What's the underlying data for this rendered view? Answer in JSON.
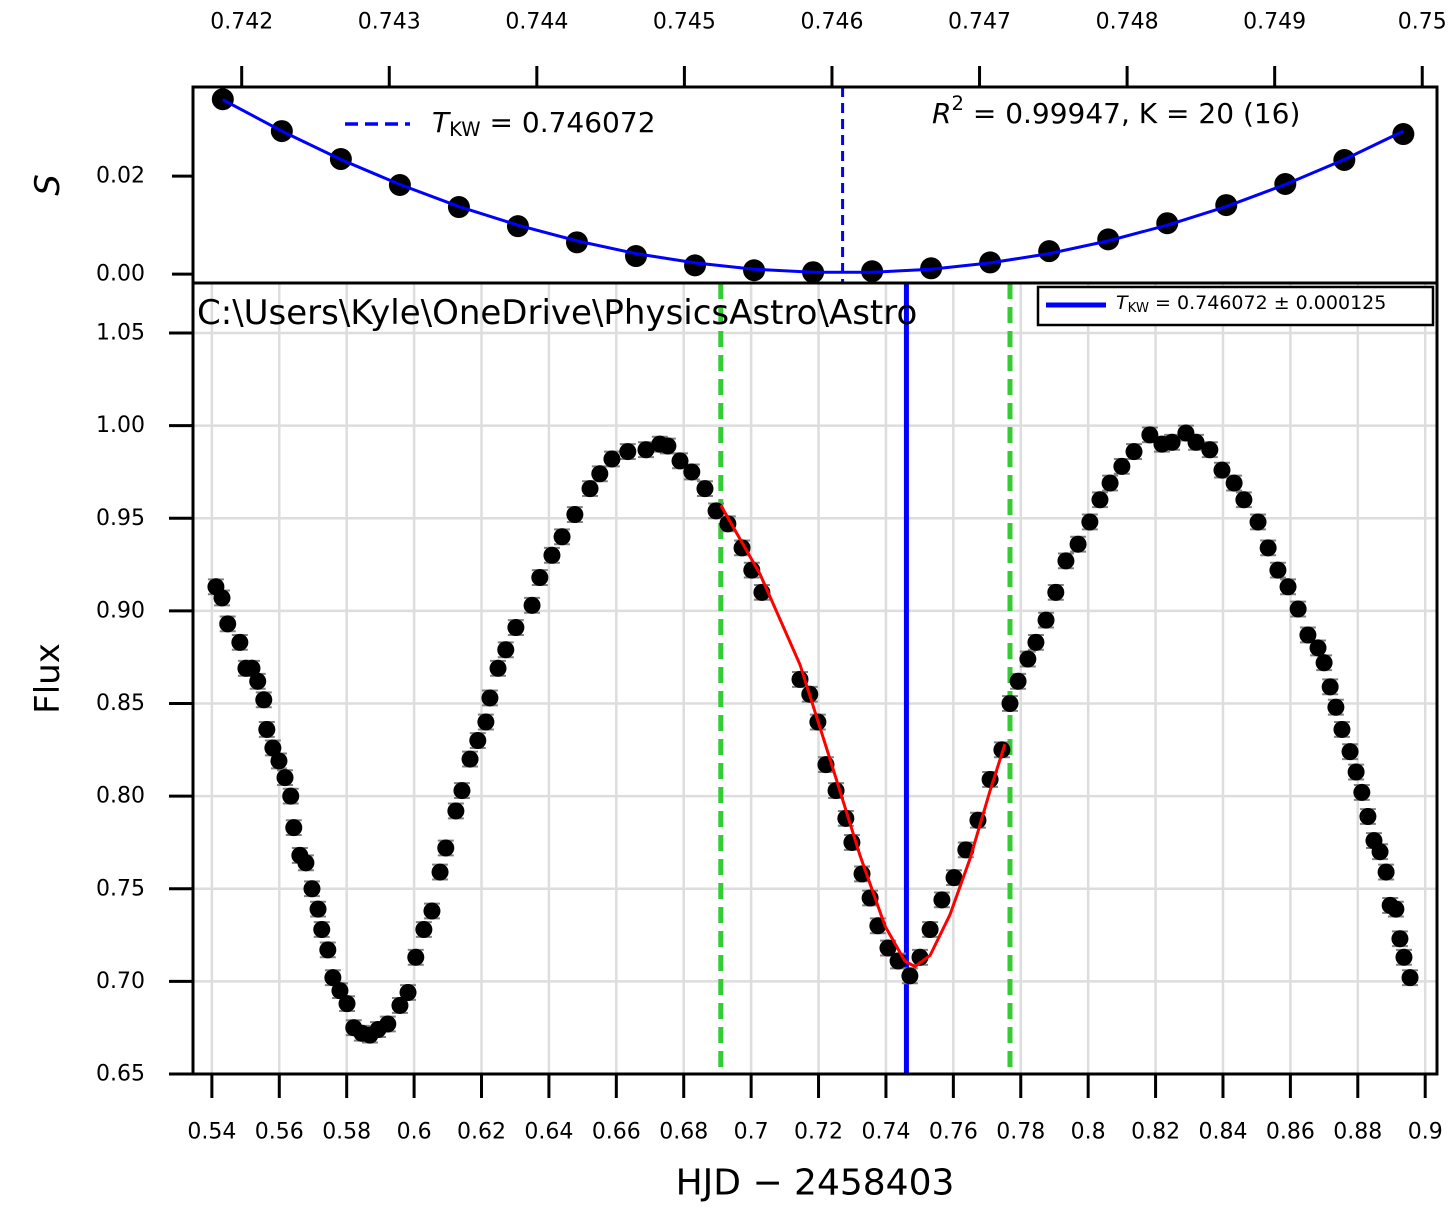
{
  "chart_data": [
    {
      "type": "scatter",
      "ylabel": "S",
      "xaxis": "top",
      "grid": false,
      "xlim": [
        0.74167,
        0.7501
      ],
      "ylim": [
        -0.0018,
        0.0382
      ],
      "xticks": [
        0.742,
        0.743,
        0.744,
        0.745,
        0.746,
        0.747,
        0.748,
        0.749,
        0.75
      ],
      "yticks": [
        {
          "value": 0,
          "label": "0.00"
        },
        {
          "value": 0.02,
          "label": "0.02"
        }
      ],
      "series": [
        {
          "color": "#000000",
          "x": [
            0.741872,
            0.742272,
            0.742672,
            0.743072,
            0.743472,
            0.743872,
            0.744272,
            0.744672,
            0.745072,
            0.745472,
            0.745872,
            0.746272,
            0.746672,
            0.747072,
            0.747472,
            0.747872,
            0.748272,
            0.748672,
            0.749072,
            0.749472,
            0.749872
          ],
          "values": [
            0.0357,
            0.0292,
            0.0235,
            0.0182,
            0.0137,
            0.0098,
            0.0065,
            0.0037,
            0.0018,
            0.0008,
            0.0004,
            0.0006,
            0.0012,
            0.0024,
            0.0047,
            0.0071,
            0.0104,
            0.0141,
            0.0184,
            0.0233,
            0.0286
          ]
        },
        {
          "line": true,
          "color": "#0000ff",
          "x": [
            0.741872,
            0.742272,
            0.742672,
            0.743072,
            0.743472,
            0.743872,
            0.744272,
            0.744672,
            0.745072,
            0.745472,
            0.745872,
            0.746272,
            0.746672,
            0.747072,
            0.747472,
            0.747872,
            0.748272,
            0.748672,
            0.749072,
            0.749472,
            0.749872
          ],
          "values": [
            0.0356,
            0.0292,
            0.0234,
            0.0183,
            0.0138,
            0.01,
            0.0068,
            0.0042,
            0.0023,
            0.001,
            0.0004,
            0.0004,
            0.001,
            0.0023,
            0.0042,
            0.0068,
            0.01,
            0.0138,
            0.0183,
            0.0234,
            0.0292
          ]
        }
      ],
      "vlines": [
        {
          "x": 0.746072,
          "color": "#0000ff",
          "dashed": true
        }
      ],
      "legend": {
        "loc": "upper left",
        "frame": false,
        "color": "#0000ff",
        "dashed": true,
        "symbol": "T",
        "subscript": "KW",
        "text": " = 0.746072"
      },
      "annotation": {
        "symbol": "R",
        "superscript": "2",
        "text": " = 0.99947, K = 20 (16)"
      }
    },
    {
      "type": "scatter",
      "title": "C:\\Users\\Kyle\\OneDrive\\PhysicsAstro\\Astro",
      "xlabel": "HJD − 2458403",
      "ylabel": "Flux",
      "xaxis": "bottom",
      "grid": true,
      "xlim": [
        0.5344,
        0.9035
      ],
      "ylim": [
        0.65,
        1.077
      ],
      "xticks": [
        0.54,
        0.56,
        0.58,
        0.6,
        0.62,
        0.64,
        0.66,
        0.68,
        0.7,
        0.72,
        0.74,
        0.76,
        0.78,
        0.8,
        0.82,
        0.84,
        0.86,
        0.88,
        0.9
      ],
      "yticks": [
        0.65,
        {
          "value": 0.7,
          "label": "0.70"
        },
        0.75,
        {
          "value": 0.8,
          "label": "0.80"
        },
        0.85,
        {
          "value": 0.9,
          "label": "0.90"
        },
        0.95,
        {
          "value": 1.0,
          "label": "1.00"
        },
        1.05
      ],
      "vlines": [
        {
          "x": 0.691,
          "color": "#33cc33",
          "dashed": true
        },
        {
          "x": 0.7768,
          "color": "#33cc33",
          "dashed": true
        },
        {
          "x": 0.746072,
          "color": "#0000ff",
          "dashed": false
        }
      ],
      "series": [
        {
          "color": "#000000",
          "yerr": 0.004,
          "ecolor": "#808080",
          "x": [
            0.5412,
            0.543,
            0.5447,
            0.5483,
            0.5501,
            0.5519,
            0.5536,
            0.5554,
            0.5563,
            0.5581,
            0.5599,
            0.5617,
            0.5634,
            0.5643,
            0.5661,
            0.5679,
            0.5697,
            0.5715,
            0.5726,
            0.5744,
            0.5759,
            0.578,
            0.5801,
            0.5821,
            0.5845,
            0.5869,
            0.5893,
            0.5922,
            0.5958,
            0.5982,
            0.6005,
            0.6029,
            0.6053,
            0.6077,
            0.6094,
            0.6124,
            0.6142,
            0.6166,
            0.6189,
            0.6213,
            0.6225,
            0.6249,
            0.6272,
            0.6302,
            0.635,
            0.6373,
            0.6409,
            0.6439,
            0.6477,
            0.6522,
            0.6551,
            0.6587,
            0.6634,
            0.6688,
            0.6729,
            0.6753,
            0.6789,
            0.6824,
            0.6863,
            0.6896,
            0.6931,
            0.6973,
            0.7002,
            0.7032,
            0.7145,
            0.7174,
            0.7198,
            0.7222,
            0.7252,
            0.7281,
            0.7299,
            0.7329,
            0.7353,
            0.7376,
            0.7406,
            0.7436,
            0.7471,
            0.7501,
            0.7531,
            0.7566,
            0.7602,
            0.7637,
            0.7673,
            0.7709,
            0.7744,
            0.7768,
            0.7792,
            0.7821,
            0.7845,
            0.7875,
            0.7904,
            0.7934,
            0.797,
            0.8005,
            0.8035,
            0.8065,
            0.81,
            0.8136,
            0.8183,
            0.8219,
            0.8249,
            0.829,
            0.832,
            0.8361,
            0.8397,
            0.8433,
            0.8462,
            0.8504,
            0.8534,
            0.8563,
            0.8593,
            0.8623,
            0.8652,
            0.8682,
            0.87,
            0.8718,
            0.8735,
            0.8753,
            0.8777,
            0.8795,
            0.8812,
            0.883,
            0.8848,
            0.8866,
            0.8884,
            0.8896,
            0.8913,
            0.8925,
            0.8937,
            0.8955
          ],
          "values": [
            0.913,
            0.907,
            0.893,
            0.883,
            0.869,
            0.869,
            0.862,
            0.852,
            0.836,
            0.826,
            0.819,
            0.81,
            0.8,
            0.783,
            0.768,
            0.764,
            0.75,
            0.739,
            0.728,
            0.717,
            0.702,
            0.695,
            0.688,
            0.675,
            0.672,
            0.671,
            0.674,
            0.677,
            0.687,
            0.694,
            0.713,
            0.728,
            0.738,
            0.759,
            0.772,
            0.792,
            0.803,
            0.82,
            0.83,
            0.84,
            0.853,
            0.869,
            0.879,
            0.891,
            0.903,
            0.918,
            0.93,
            0.94,
            0.952,
            0.966,
            0.974,
            0.982,
            0.986,
            0.987,
            0.99,
            0.989,
            0.981,
            0.975,
            0.966,
            0.954,
            0.947,
            0.934,
            0.922,
            0.91,
            0.863,
            0.855,
            0.84,
            0.817,
            0.803,
            0.788,
            0.775,
            0.758,
            0.745,
            0.73,
            0.718,
            0.711,
            0.703,
            0.713,
            0.728,
            0.744,
            0.756,
            0.771,
            0.787,
            0.809,
            0.825,
            0.85,
            0.862,
            0.874,
            0.883,
            0.895,
            0.91,
            0.927,
            0.936,
            0.948,
            0.96,
            0.969,
            0.978,
            0.986,
            0.995,
            0.99,
            0.991,
            0.996,
            0.991,
            0.987,
            0.976,
            0.969,
            0.96,
            0.948,
            0.934,
            0.922,
            0.913,
            0.901,
            0.887,
            0.88,
            0.872,
            0.859,
            0.848,
            0.836,
            0.824,
            0.813,
            0.802,
            0.789,
            0.776,
            0.77,
            0.759,
            0.741,
            0.739,
            0.723,
            0.713,
            0.702
          ]
        },
        {
          "line": true,
          "color": "#ff0000",
          "x": [
            0.691,
            0.7026,
            0.7145,
            0.7234,
            0.7323,
            0.7397,
            0.7456,
            0.7486,
            0.7531,
            0.759,
            0.7649,
            0.7709,
            0.7753
          ],
          "values": [
            0.957,
            0.92,
            0.871,
            0.82,
            0.768,
            0.73,
            0.711,
            0.708,
            0.714,
            0.736,
            0.766,
            0.803,
            0.828
          ]
        }
      ],
      "legend": {
        "loc": "upper right",
        "frame": true,
        "color": "#0000ff",
        "dashed": false,
        "symbol": "T",
        "subscript": "KW",
        "text": " = 0.746072 ± 0.000125"
      }
    }
  ]
}
